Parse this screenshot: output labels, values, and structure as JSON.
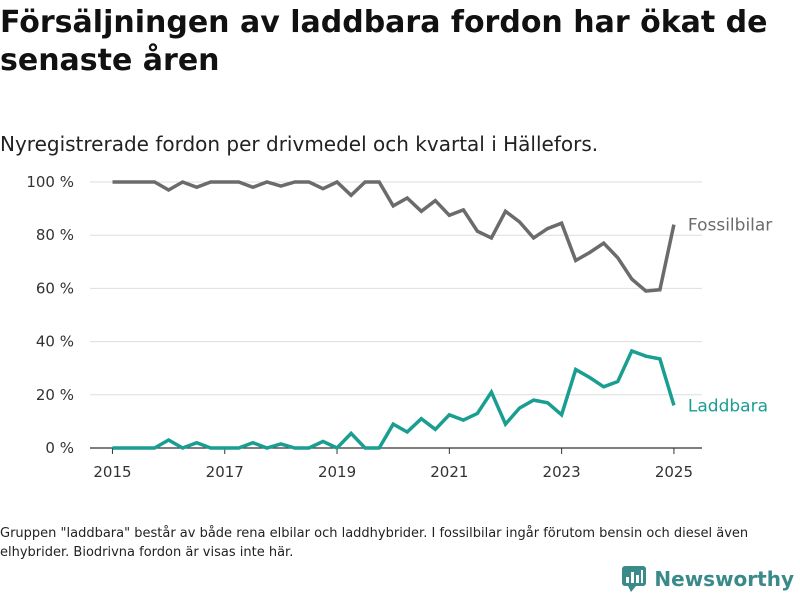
{
  "header": {
    "title": "Försäljningen av laddbara fordon har ökat de senaste åren",
    "subtitle": "Nyregistrerade fordon per drivmedel och kvartal i Hällefors."
  },
  "footer": {
    "note": "Gruppen \"laddbara\" består av både rena elbilar och laddhybrider. I fossilbilar ingår förutom bensin och diesel även elhybrider. Biodrivna fordon är visas inte här.",
    "brand": "Newsworthy"
  },
  "colors": {
    "fossil": "#6b6b6e",
    "laddbara": "#1a9e92",
    "brand": "#3a8a89"
  },
  "chart_data": {
    "type": "line",
    "title": "Försäljningen av laddbara fordon har ökat de senaste åren",
    "subtitle": "Nyregistrerade fordon per drivmedel och kvartal i Hällefors.",
    "xlabel": "",
    "ylabel": "",
    "xlim": [
      2014.6,
      2025.5
    ],
    "ylim": [
      0,
      100
    ],
    "grid": true,
    "legend": "direct labels at line ends",
    "x_ticks": [
      "2015",
      "2017",
      "2019",
      "2021",
      "2023",
      "2025"
    ],
    "y_ticks": [
      "0 %",
      "20 %",
      "40 %",
      "60 %",
      "80 %",
      "100 %"
    ],
    "x": [
      2015.0,
      2015.25,
      2015.5,
      2015.75,
      2016.0,
      2016.25,
      2016.5,
      2016.75,
      2017.0,
      2017.25,
      2017.5,
      2017.75,
      2018.0,
      2018.25,
      2018.5,
      2018.75,
      2019.0,
      2019.25,
      2019.5,
      2019.75,
      2020.0,
      2020.25,
      2020.5,
      2020.75,
      2021.0,
      2021.25,
      2021.5,
      2021.75,
      2022.0,
      2022.25,
      2022.5,
      2022.75,
      2023.0,
      2023.25,
      2023.5,
      2023.75,
      2024.0,
      2024.25,
      2024.5,
      2024.75,
      2025.0
    ],
    "series": [
      {
        "name": "Fossilbilar",
        "values": [
          100,
          100,
          100,
          100,
          97,
          100,
          98,
          100,
          100,
          100,
          98,
          100,
          98.5,
          100,
          100,
          97.5,
          100,
          95,
          100,
          100,
          91,
          94,
          89,
          93,
          87.5,
          89.5,
          81.5,
          79,
          89,
          85,
          79,
          82.5,
          84.5,
          70.5,
          73.5,
          77,
          71.5,
          63.5,
          59,
          59.5,
          84
        ]
      },
      {
        "name": "Laddbara",
        "values": [
          0,
          0,
          0,
          0,
          3,
          0,
          2,
          0,
          0,
          0,
          2,
          0,
          1.5,
          0,
          0,
          2.5,
          0,
          5.5,
          0,
          0,
          9,
          6,
          11,
          7,
          12.5,
          10.5,
          13,
          21,
          9,
          15,
          18,
          17,
          12.5,
          29.5,
          26.5,
          23,
          25,
          36.5,
          34.5,
          33.5,
          16
        ]
      }
    ]
  }
}
